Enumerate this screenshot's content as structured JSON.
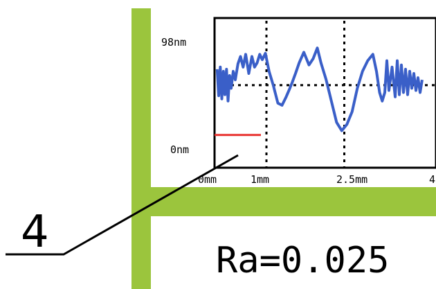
{
  "colors": {
    "frame_green": "#9bc53d",
    "trace_blue": "#3a5fc8",
    "marker_red": "#e8322e",
    "ink": "#000000"
  },
  "chart_data": {
    "type": "line",
    "title": "",
    "xlabel": "",
    "ylabel": "",
    "x_tick_labels": [
      "0mm",
      "1mm",
      "2.5mm",
      "4"
    ],
    "y_tick_labels": [
      "98nm",
      "0nm"
    ],
    "xlim": [
      0,
      4
    ],
    "ylim": [
      0,
      98
    ],
    "grid": "dotted lines at 1mm, 2.5mm and mean level",
    "legend": "none",
    "mean_level": 55,
    "reference_segment": {
      "x": [
        0,
        1
      ],
      "y": 8
    },
    "series": [
      {
        "x": [
          0.05,
          0.08,
          0.11,
          0.14,
          0.17,
          0.2,
          0.23,
          0.26,
          0.29,
          0.32,
          0.36,
          0.4,
          0.45,
          0.5,
          0.55,
          0.6,
          0.66,
          0.72,
          0.77,
          0.82,
          0.87,
          0.92,
          0.98,
          1.05,
          1.13,
          1.22,
          1.3,
          1.38,
          1.45,
          1.5,
          1.56,
          1.63,
          1.72,
          1.82,
          1.9,
          1.98,
          2.05,
          2.15,
          2.25,
          2.35,
          2.45,
          2.55,
          2.65,
          2.75,
          2.85,
          2.95,
          3.05,
          3.12,
          3.18,
          3.23,
          3.28,
          3.32,
          3.36,
          3.42,
          3.48,
          3.52,
          3.56,
          3.6,
          3.64,
          3.68,
          3.72,
          3.76,
          3.8,
          3.84,
          3.88,
          3.92,
          3.96,
          4.0
        ],
        "y": [
          70,
          45,
          72,
          42,
          68,
          46,
          70,
          40,
          64,
          52,
          68,
          60,
          75,
          82,
          72,
          84,
          66,
          82,
          72,
          76,
          84,
          79,
          85,
          68,
          55,
          38,
          36,
          44,
          52,
          58,
          66,
          76,
          86,
          74,
          80,
          90,
          76,
          60,
          40,
          20,
          12,
          18,
          30,
          52,
          68,
          78,
          84,
          68,
          48,
          40,
          48,
          78,
          50,
          72,
          44,
          78,
          46,
          74,
          48,
          70,
          46,
          68,
          52,
          66,
          50,
          62,
          48,
          60
        ]
      }
    ]
  },
  "callout": {
    "label": "4"
  },
  "result": {
    "text": "Ra=0.025"
  }
}
